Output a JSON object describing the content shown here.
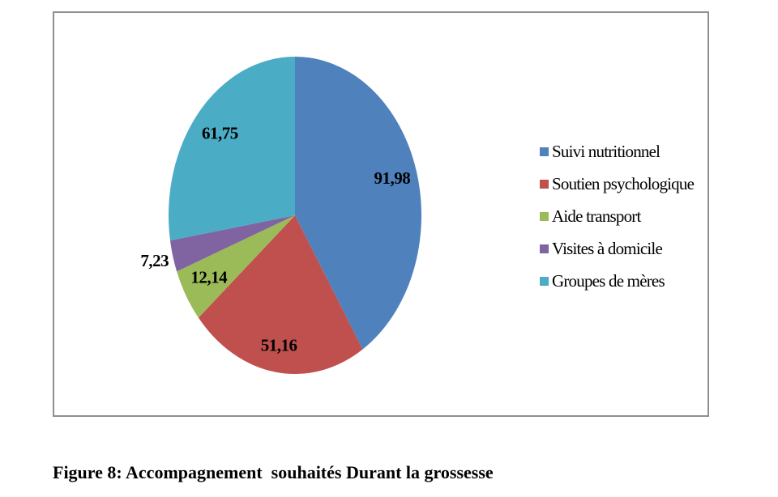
{
  "figure": {
    "caption": "Figure 8: Accompagnement  souhaités Durant la grossesse"
  },
  "chart_data": {
    "type": "pie",
    "shape": "ellipse",
    "start_angle_deg": 0,
    "direction": "clockwise",
    "legend_position": "right",
    "number_format": "comma-decimal",
    "total": 224.26,
    "slices": [
      {
        "label": "Suivi nutritionnel",
        "value": 91.98,
        "display_value": "91,98",
        "color": "#4F81BD",
        "label_position": "inside",
        "label_radius_factor": 0.8
      },
      {
        "label": "Soutien psychologique",
        "value": 51.16,
        "display_value": "51,16",
        "color": "#C0504D",
        "label_position": "inside",
        "label_radius_factor": 0.84
      },
      {
        "label": "Aide transport",
        "value": 12.14,
        "display_value": "12,14",
        "color": "#9BBB59",
        "label_position": "inside",
        "label_radius_factor": 0.79
      },
      {
        "label": "Visites à domicile",
        "value": 7.23,
        "display_value": "7,23",
        "color": "#8064A2",
        "label_position": "outside",
        "label_radius_factor": 1.15
      },
      {
        "label": "Groupes de mères",
        "value": 61.75,
        "display_value": "61,75",
        "color": "#4BACC6",
        "label_position": "inside",
        "label_radius_factor": 0.78
      }
    ]
  }
}
